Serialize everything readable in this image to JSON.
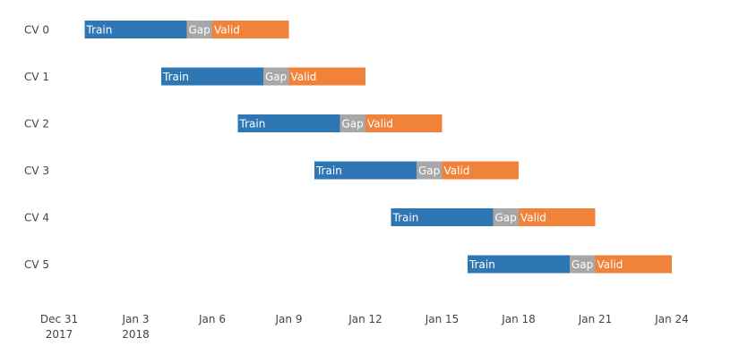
{
  "chart_data": {
    "type": "bar",
    "orientation": "horizontal",
    "subtype": "gantt",
    "title": "",
    "xlabel": "",
    "ylabel": "",
    "xlim": [
      "2017-12-30",
      "2018-01-25"
    ],
    "x_ticks": [
      {
        "date": "2017-12-31",
        "label": "Dec 31",
        "sublabel": "2017"
      },
      {
        "date": "2018-01-03",
        "label": "Jan 3",
        "sublabel": "2018"
      },
      {
        "date": "2018-01-06",
        "label": "Jan 6",
        "sublabel": ""
      },
      {
        "date": "2018-01-09",
        "label": "Jan 9",
        "sublabel": ""
      },
      {
        "date": "2018-01-12",
        "label": "Jan 12",
        "sublabel": ""
      },
      {
        "date": "2018-01-15",
        "label": "Jan 15",
        "sublabel": ""
      },
      {
        "date": "2018-01-18",
        "label": "Jan 18",
        "sublabel": ""
      },
      {
        "date": "2018-01-21",
        "label": "Jan 21",
        "sublabel": ""
      },
      {
        "date": "2018-01-24",
        "label": "Jan 24",
        "sublabel": ""
      }
    ],
    "grid": false,
    "legend": "none",
    "categories": [
      "CV 0",
      "CV 1",
      "CV 2",
      "CV 3",
      "CV 4",
      "CV 5"
    ],
    "segment_types": [
      {
        "label": "Train",
        "color": "#2f77b4"
      },
      {
        "label": "Gap",
        "color": "#a7a7a7"
      },
      {
        "label": "Valid",
        "color": "#f0823a"
      }
    ],
    "rows": [
      {
        "category": "CV 0",
        "segments": [
          {
            "label": "Train",
            "start": "2018-01-01",
            "end": "2018-01-05"
          },
          {
            "label": "Gap",
            "start": "2018-01-05",
            "end": "2018-01-06"
          },
          {
            "label": "Valid",
            "start": "2018-01-06",
            "end": "2018-01-09"
          }
        ]
      },
      {
        "category": "CV 1",
        "segments": [
          {
            "label": "Train",
            "start": "2018-01-04",
            "end": "2018-01-08"
          },
          {
            "label": "Gap",
            "start": "2018-01-08",
            "end": "2018-01-09"
          },
          {
            "label": "Valid",
            "start": "2018-01-09",
            "end": "2018-01-12"
          }
        ]
      },
      {
        "category": "CV 2",
        "segments": [
          {
            "label": "Train",
            "start": "2018-01-07",
            "end": "2018-01-11"
          },
          {
            "label": "Gap",
            "start": "2018-01-11",
            "end": "2018-01-12"
          },
          {
            "label": "Valid",
            "start": "2018-01-12",
            "end": "2018-01-15"
          }
        ]
      },
      {
        "category": "CV 3",
        "segments": [
          {
            "label": "Train",
            "start": "2018-01-10",
            "end": "2018-01-14"
          },
          {
            "label": "Gap",
            "start": "2018-01-14",
            "end": "2018-01-15"
          },
          {
            "label": "Valid",
            "start": "2018-01-15",
            "end": "2018-01-18"
          }
        ]
      },
      {
        "category": "CV 4",
        "segments": [
          {
            "label": "Train",
            "start": "2018-01-13",
            "end": "2018-01-17"
          },
          {
            "label": "Gap",
            "start": "2018-01-17",
            "end": "2018-01-18"
          },
          {
            "label": "Valid",
            "start": "2018-01-18",
            "end": "2018-01-21"
          }
        ]
      },
      {
        "category": "CV 5",
        "segments": [
          {
            "label": "Train",
            "start": "2018-01-16",
            "end": "2018-01-20"
          },
          {
            "label": "Gap",
            "start": "2018-01-20",
            "end": "2018-01-21"
          },
          {
            "label": "Valid",
            "start": "2018-01-21",
            "end": "2018-01-24"
          }
        ]
      }
    ]
  }
}
